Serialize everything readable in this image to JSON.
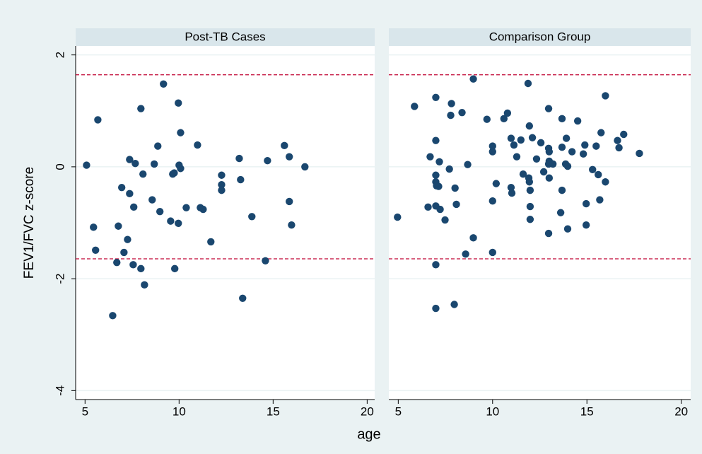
{
  "ylabel": "FEV1/FVC z-score",
  "xlabel": "age",
  "chart_data": [
    {
      "type": "scatter",
      "title": "Post-TB Cases",
      "color": "#1a476f",
      "grid": true,
      "hlines": [
        1.645,
        -1.645
      ],
      "hline_color": "#c10534",
      "xlim": [
        4.5,
        20.4
      ],
      "ylim": [
        -4.16,
        2.16
      ],
      "xticks": [
        5,
        10,
        15,
        20
      ],
      "yticks": [
        2,
        0,
        -2,
        -4
      ],
      "x": [
        5.08,
        5.68,
        5.45,
        5.56,
        6.47,
        6.69,
        6.77,
        6.95,
        7.07,
        7.26,
        7.37,
        7.37,
        7.56,
        7.59,
        7.67,
        7.97,
        7.97,
        8.08,
        8.16,
        8.57,
        8.68,
        8.87,
        8.98,
        9.17,
        9.55,
        9.66,
        9.74,
        9.77,
        9.96,
        9.96,
        10.0,
        10.08,
        10.08,
        10.38,
        10.98,
        11.13,
        11.28,
        11.69,
        12.26,
        12.26,
        12.26,
        13.2,
        13.27,
        13.38,
        13.87,
        14.59,
        14.7,
        15.6,
        15.86,
        15.86,
        15.98,
        16.69
      ],
      "y": [
        0.03,
        0.84,
        -1.08,
        -1.49,
        -2.66,
        -1.71,
        -1.06,
        -0.37,
        -1.53,
        -1.3,
        0.13,
        -0.48,
        -1.75,
        -0.72,
        0.06,
        -1.82,
        1.04,
        -0.13,
        -2.11,
        -0.59,
        0.05,
        0.37,
        -0.8,
        1.48,
        -0.97,
        -0.13,
        -0.11,
        -1.82,
        1.14,
        -1.01,
        0.03,
        -0.03,
        0.61,
        -0.73,
        0.39,
        -0.73,
        -0.76,
        -1.34,
        -0.15,
        -0.32,
        -0.42,
        0.15,
        -0.23,
        -2.35,
        -0.89,
        -1.68,
        0.11,
        0.38,
        0.18,
        -0.62,
        -1.04,
        0.0
      ]
    },
    {
      "type": "scatter",
      "title": "Comparison Group",
      "color": "#1a476f",
      "grid": true,
      "hlines": [
        1.645,
        -1.645
      ],
      "hline_color": "#c10534",
      "xlim": [
        4.5,
        20.5
      ],
      "ylim": [
        -4.16,
        2.16
      ],
      "xticks": [
        5,
        10,
        15,
        20
      ],
      "yticks": [
        2,
        0,
        -2,
        -4
      ],
      "x": [
        4.96,
        5.86,
        6.58,
        6.69,
        6.99,
        6.99,
        6.99,
        6.99,
        7.03,
        6.99,
        6.99,
        6.99,
        7.14,
        7.18,
        7.22,
        7.48,
        7.71,
        7.78,
        7.82,
        8.01,
        7.97,
        8.08,
        8.38,
        8.57,
        8.68,
        8.98,
        8.98,
        9.7,
        10.0,
        10.0,
        10.0,
        10.0,
        10.19,
        10.6,
        10.79,
        10.98,
        10.98,
        11.02,
        11.13,
        11.28,
        11.5,
        11.62,
        11.88,
        11.95,
        11.92,
        11.95,
        11.99,
        11.99,
        11.99,
        12.11,
        12.33,
        12.56,
        12.71,
        12.97,
        12.97,
        13.0,
        13.0,
        12.97,
        13.08,
        13.0,
        12.97,
        13.2,
        13.68,
        13.68,
        13.68,
        13.61,
        13.87,
        13.91,
        13.98,
        13.98,
        14.21,
        14.51,
        14.81,
        14.89,
        14.96,
        14.96,
        15.3,
        15.49,
        15.6,
        15.68,
        15.75,
        15.98,
        15.98,
        16.62,
        16.7,
        16.95,
        17.78
      ],
      "y": [
        -0.9,
        1.08,
        -0.72,
        0.18,
        1.24,
        0.47,
        -0.15,
        -0.27,
        -0.34,
        -0.7,
        -1.75,
        -2.53,
        -0.35,
        0.09,
        -0.76,
        -0.95,
        -0.04,
        0.92,
        1.13,
        -0.38,
        -2.46,
        -0.67,
        0.97,
        -1.56,
        0.04,
        1.57,
        -1.27,
        0.85,
        0.37,
        0.27,
        -0.61,
        -1.53,
        -0.3,
        0.86,
        0.96,
        0.51,
        -0.37,
        -0.47,
        0.39,
        0.18,
        0.48,
        -0.13,
        1.49,
        0.73,
        -0.2,
        -0.27,
        -0.42,
        -0.71,
        -0.94,
        0.52,
        0.14,
        0.43,
        -0.09,
        1.04,
        0.33,
        0.27,
        0.1,
        0.05,
        0.06,
        -0.2,
        -1.19,
        0.05,
        0.86,
        0.35,
        -0.42,
        -0.82,
        0.05,
        0.51,
        0.01,
        -1.11,
        0.27,
        0.82,
        0.23,
        0.39,
        -0.66,
        -1.04,
        -0.05,
        0.37,
        -0.14,
        -0.59,
        0.61,
        1.27,
        -0.27,
        0.47,
        0.34,
        0.58,
        0.24
      ]
    }
  ]
}
